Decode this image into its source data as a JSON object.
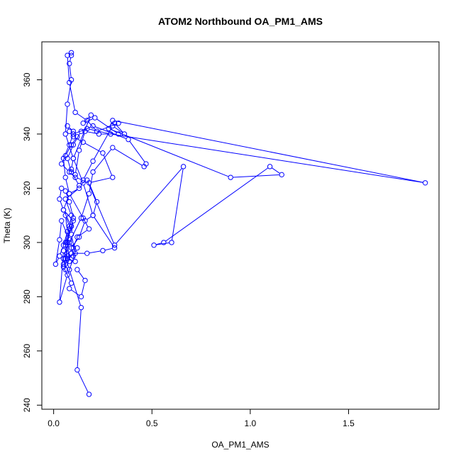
{
  "chart_data": {
    "type": "line",
    "title": "ATOM2 Northbound OA_PM1_AMS",
    "xlabel": "OA_PM1_AMS",
    "ylabel": "Theta (K)",
    "xlim": [
      -0.06,
      1.96
    ],
    "ylim": [
      238.5,
      374
    ],
    "xticks": [
      0.0,
      0.5,
      1.0,
      1.5
    ],
    "xtick_labels": [
      "0.0",
      "0.5",
      "1.0",
      "1.5"
    ],
    "yticks": [
      240,
      260,
      280,
      300,
      320,
      340,
      360
    ],
    "ytick_labels": [
      "240",
      "260",
      "280",
      "300",
      "320",
      "340",
      "360"
    ],
    "grid": false,
    "legend": "none",
    "series_color": "#0000ff",
    "series": [
      {
        "x": [
          0.18,
          0.12,
          0.14,
          0.08,
          0.05,
          0.03,
          0.07,
          0.11,
          0.09,
          0.1,
          0.05,
          0.08,
          0.13,
          0.06,
          0.09,
          0.08,
          0.07,
          0.12,
          0.1,
          0.06,
          0.11,
          0.09,
          0.13,
          0.16,
          0.2,
          0.22,
          0.18,
          0.3,
          0.25,
          0.15,
          0.1,
          0.08,
          0.07,
          0.1,
          0.12,
          0.09,
          0.06,
          0.04,
          0.08,
          0.11,
          0.15,
          0.2,
          0.3,
          0.36,
          0.31,
          0.33,
          0.22,
          0.17,
          0.11,
          0.08,
          0.07,
          0.09,
          0.09,
          0.08,
          0.09,
          0.07,
          0.06,
          0.1,
          0.09,
          0.11,
          0.13,
          0.16,
          0.23,
          0.33,
          0.21,
          0.15,
          0.19,
          0.1,
          0.15,
          0.2,
          0.31,
          0.25,
          0.17,
          0.09,
          0.06,
          0.08,
          0.14,
          0.18,
          0.2,
          0.3,
          0.46,
          0.47,
          0.38,
          0.2,
          0.14,
          0.1,
          0.07,
          0.09,
          0.13,
          0.17,
          0.31,
          0.66,
          0.6,
          0.51,
          0.56,
          1.1,
          1.16,
          0.9,
          0.28,
          0.3,
          1.89,
          0.29,
          0.17,
          0.1,
          0.08,
          0.05,
          0.06,
          0.08,
          0.15,
          0.18,
          0.12,
          0.1,
          0.09,
          0.06,
          0.05,
          0.08,
          0.04,
          0.03,
          0.01,
          0.03,
          0.05,
          0.07,
          0.06,
          0.08,
          0.06,
          0.07,
          0.05,
          0.08,
          0.07,
          0.1,
          0.08,
          0.06,
          0.04,
          0.03,
          0.05,
          0.09,
          0.06,
          0.07,
          0.05,
          0.09,
          0.08,
          0.14,
          0.16,
          0.12
        ],
        "y": [
          244,
          253,
          276,
          290,
          297,
          278,
          288,
          296,
          303,
          308,
          312,
          318,
          320,
          316,
          310,
          305,
          300,
          298,
          295,
          294,
          293,
          298,
          302,
          308,
          310,
          315,
          322,
          324,
          333,
          337,
          339,
          341,
          343,
          341,
          339,
          336,
          332,
          329,
          326,
          324,
          323,
          330,
          343,
          340,
          344,
          344,
          341,
          345,
          348,
          359,
          369,
          370,
          369,
          366,
          360,
          351,
          340,
          331,
          327,
          325,
          334,
          341,
          340,
          340,
          346,
          344,
          347,
          331,
          322,
          310,
          298,
          297,
          296,
          296,
          294,
          300,
          309,
          318,
          326,
          335,
          328,
          329,
          338,
          343,
          341,
          336,
          331,
          326,
          321,
          323,
          299,
          328,
          300,
          299,
          300,
          328,
          325,
          324,
          342,
          345,
          322,
          340,
          342,
          340,
          336,
          331,
          324,
          318,
          309,
          305,
          302,
          298,
          296,
          290,
          294,
          301,
          308,
          301,
          292,
          295,
          299,
          304,
          310,
          306,
          300,
          295,
          292,
          293,
          300,
          309,
          315,
          319,
          320,
          316,
          312,
          306,
          299,
          294,
          291,
          285,
          283,
          280,
          286,
          290
        ]
      }
    ]
  }
}
